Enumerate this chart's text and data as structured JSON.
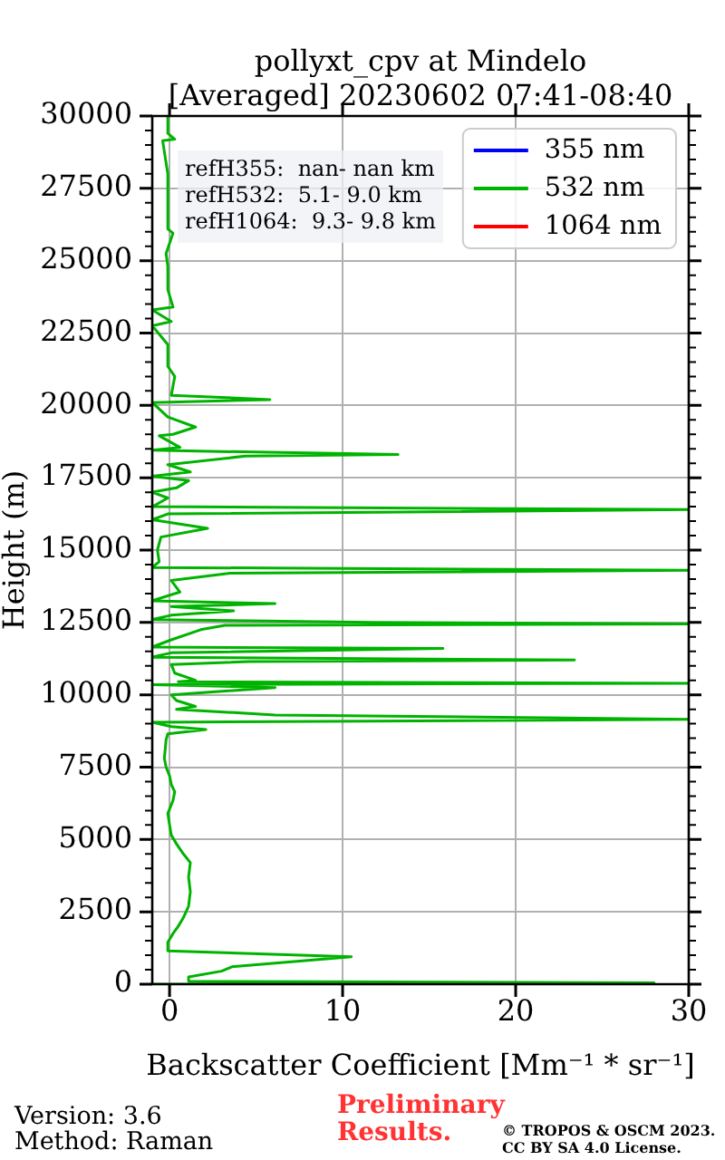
{
  "chart_data": {
    "type": "line",
    "title": "pollyxt_cpv at Mindelo",
    "subtitle": "[Averaged] 20230602 07:41-08:40",
    "xlabel": "Backscatter Coefficient [Mm⁻¹ * sr⁻¹]",
    "ylabel": "Height (m)",
    "annotations": [
      "refH355:  nan- nan km",
      "refH532:  5.1- 9.0 km",
      "refH1064:  9.3- 9.8 km",
      "Version: 3.6",
      "Method: Raman",
      "Preliminary Results.",
      "© TROPOS & OSCM 2023. CC BY SA 4.0 License."
    ],
    "series": [
      {
        "name": "355 nm",
        "color": "#0000ff"
      },
      {
        "name": "532 nm",
        "color": "#00b300",
        "x": [
          -1,
          28,
          1.1,
          1.1,
          3.0,
          3.6,
          10.5,
          -0.1,
          -0.1,
          0.2,
          0.5,
          0.8,
          1.1,
          1.2,
          1.1,
          1.2,
          0.8,
          0.4,
          0.1,
          0,
          -0.1,
          0.2,
          0.3,
          0.1,
          0,
          -0.2,
          -0.3,
          -0.2,
          -0.1,
          2.1,
          0.1,
          -1,
          30,
          22.8,
          6.1,
          0.4,
          1.5,
          0.4,
          0.1,
          6.1,
          -1,
          30,
          0.5,
          1.5,
          0.3,
          0.1,
          4.6,
          23.4,
          -1,
          0.1,
          15.8,
          -1,
          0.1,
          1.8,
          3.2,
          30,
          11.7,
          -1,
          0.1,
          3.7,
          0.1,
          6.1,
          -1,
          0.6,
          0.1,
          3.5,
          30,
          -1,
          -0.6,
          -0.7,
          -0.5,
          2.2,
          0.6,
          -1,
          -0.1,
          30,
          -1,
          -0.1,
          -1,
          0.4,
          1.1,
          -1,
          1.2,
          -0.1,
          4.4,
          13.2,
          -1,
          0.6,
          -0.6,
          0.2,
          1.5,
          -0.1,
          -1,
          5.8,
          0.1,
          0.3,
          -0.1,
          -0.1,
          -1,
          0.1,
          -1,
          0.2,
          -0.1,
          -0.1,
          -0.2,
          0.2,
          -0.1,
          -0.1,
          -0.4,
          0.3,
          -0.1,
          -0.1
        ],
        "values": [
          0,
          50,
          100,
          250,
          450,
          600,
          950,
          1150,
          1450,
          1750,
          2000,
          2300,
          2700,
          3200,
          3700,
          4200,
          4500,
          4850,
          5150,
          5500,
          5900,
          6350,
          6650,
          6900,
          7200,
          7500,
          7800,
          8450,
          8650,
          8800,
          8900,
          9050,
          9150,
          9200,
          9300,
          9500,
          9600,
          9800,
          10000,
          10250,
          10350,
          10400,
          10450,
          10500,
          10750,
          11050,
          11150,
          11200,
          11300,
          11450,
          11600,
          11650,
          11900,
          12250,
          12400,
          12450,
          12500,
          12600,
          12750,
          12900,
          13050,
          13150,
          13250,
          13550,
          13950,
          14200,
          14300,
          14400,
          14600,
          15000,
          15450,
          15750,
          15900,
          16050,
          16250,
          16400,
          16500,
          16800,
          17000,
          17150,
          17400,
          17550,
          17700,
          17950,
          18250,
          18300,
          18450,
          18550,
          18950,
          19000,
          19250,
          19600,
          20100,
          20200,
          20350,
          21000,
          21350,
          22100,
          22750,
          22900,
          23300,
          23400,
          24000,
          24800,
          25250,
          25950,
          26100,
          28000,
          29150,
          29200,
          29400,
          30000
        ]
      },
      {
        "name": "1064 nm",
        "color": "#ff0000"
      }
    ],
    "xlim": [
      -1,
      30
    ],
    "xticks": [
      0,
      10,
      20,
      30
    ],
    "ylim": [
      0,
      30000
    ],
    "yticks": [
      0,
      {
        "value": 500,
        "label": null
      },
      {
        "value": 1000,
        "label": null
      },
      {
        "value": 1500,
        "label": null
      },
      {
        "value": 2000,
        "label": null
      },
      2500,
      {
        "value": 3000,
        "label": null
      },
      {
        "value": 3500,
        "label": null
      },
      {
        "value": 4000,
        "label": null
      },
      {
        "value": 4500,
        "label": null
      },
      5000,
      {
        "value": 5500,
        "label": null
      },
      {
        "value": 6000,
        "label": null
      },
      {
        "value": 6500,
        "label": null
      },
      {
        "value": 7000,
        "label": null
      },
      7500,
      {
        "value": 8000,
        "label": null
      },
      {
        "value": 8500,
        "label": null
      },
      {
        "value": 9000,
        "label": null
      },
      {
        "value": 9500,
        "label": null
      },
      10000,
      {
        "value": 10500,
        "label": null
      },
      {
        "value": 11000,
        "label": null
      },
      {
        "value": 11500,
        "label": null
      },
      {
        "value": 12000,
        "label": null
      },
      12500,
      {
        "value": 13000,
        "label": null
      },
      {
        "value": 13500,
        "label": null
      },
      {
        "value": 14000,
        "label": null
      },
      {
        "value": 14500,
        "label": null
      },
      15000,
      {
        "value": 15500,
        "label": null
      },
      {
        "value": 16000,
        "label": null
      },
      {
        "value": 16500,
        "label": null
      },
      {
        "value": 17000,
        "label": null
      },
      17500,
      {
        "value": 18000,
        "label": null
      },
      {
        "value": 18500,
        "label": null
      },
      {
        "value": 19000,
        "label": null
      },
      {
        "value": 19500,
        "label": null
      },
      20000,
      {
        "value": 20500,
        "label": null
      },
      {
        "value": 21000,
        "label": null
      },
      {
        "value": 21500,
        "label": null
      },
      {
        "value": 22000,
        "label": null
      },
      22500,
      {
        "value": 23000,
        "label": null
      },
      {
        "value": 23500,
        "label": null
      },
      {
        "value": 24000,
        "label": null
      },
      {
        "value": 24500,
        "label": null
      },
      25000,
      {
        "value": 25500,
        "label": null
      },
      {
        "value": 26000,
        "label": null
      },
      {
        "value": 26500,
        "label": null
      },
      {
        "value": 27000,
        "label": null
      },
      27500,
      {
        "value": 28000,
        "label": null
      },
      {
        "value": 28500,
        "label": null
      },
      {
        "value": 29000,
        "label": null
      },
      {
        "value": 29500,
        "label": null
      },
      30000
    ],
    "grid": true,
    "legend": "top right",
    "marker": "none",
    "line_style": "solid"
  }
}
